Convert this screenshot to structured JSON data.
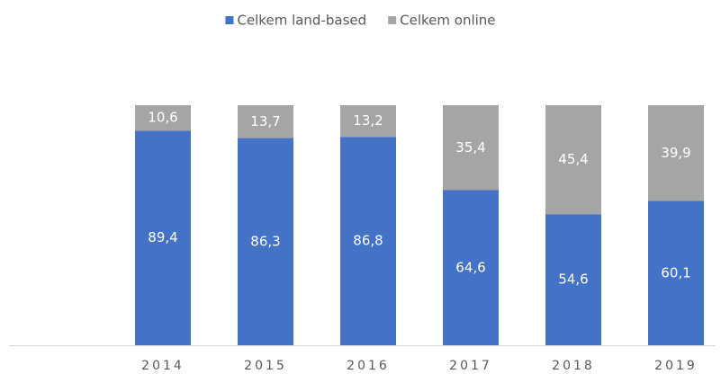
{
  "chart_data": {
    "type": "stacked_bar",
    "categories": [
      null,
      "2014",
      "2015",
      "2016",
      "2017",
      "2018",
      "2019"
    ],
    "series": [
      {
        "name": "Celkem land-based",
        "color": "#4472c4",
        "values": [
          null,
          89.4,
          86.3,
          86.8,
          64.6,
          54.6,
          60.1
        ],
        "value_labels": [
          null,
          "89,4",
          "86,3",
          "86,8",
          "64,6",
          "54,6",
          "60,1"
        ]
      },
      {
        "name": "Celkem online",
        "color": "#a5a5a5",
        "values": [
          null,
          10.6,
          13.7,
          13.2,
          35.4,
          45.4,
          39.9
        ],
        "value_labels": [
          null,
          "10,6",
          "13,7",
          "13,2",
          "35,4",
          "45,4",
          "39,9"
        ]
      }
    ],
    "ylim": [
      0,
      100
    ],
    "legend": "top"
  }
}
